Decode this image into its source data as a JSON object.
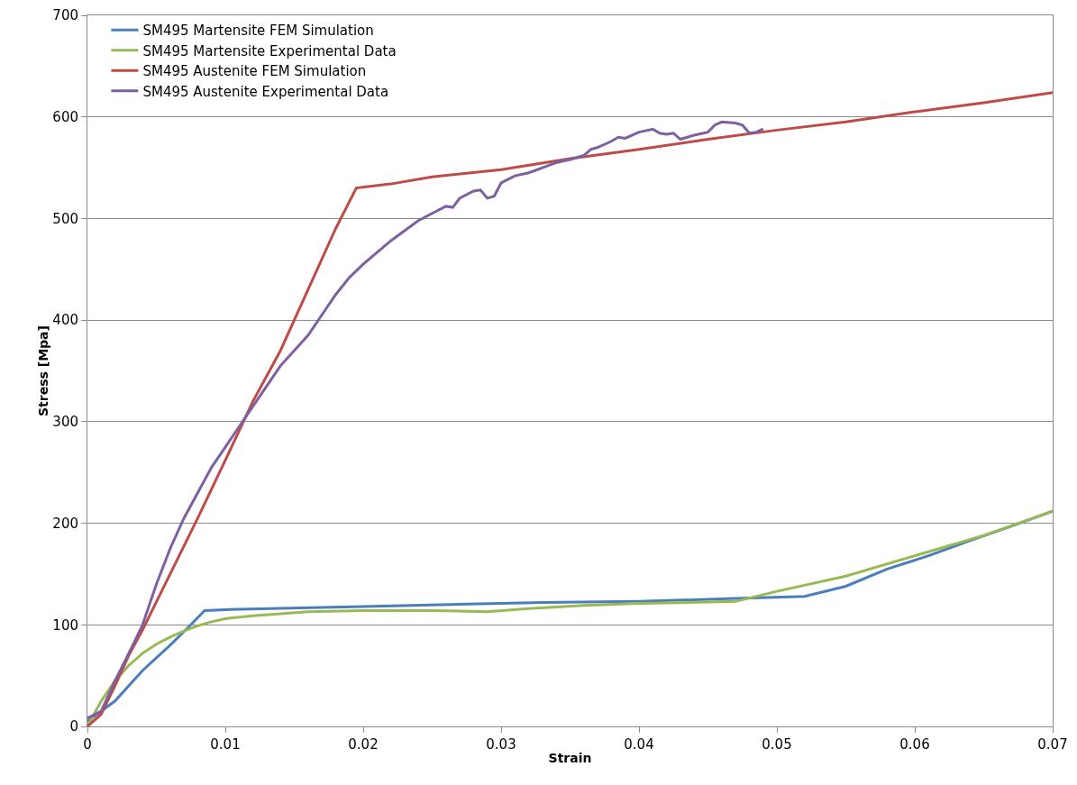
{
  "chart_data": {
    "type": "line",
    "xlabel": "Strain",
    "ylabel": "Stress [Mpa]",
    "xlim": [
      0,
      0.07
    ],
    "xticks": [
      0,
      0.01,
      0.02,
      0.03,
      0.04,
      0.05,
      0.06,
      0.07
    ],
    "ylim": [
      0,
      700
    ],
    "yticks": [
      0,
      100,
      200,
      300,
      400,
      500,
      600,
      700
    ],
    "grid": "y",
    "legend": "top left",
    "marker": "none",
    "line_style": "solid",
    "series": [
      {
        "name": "SM495 Martensite FEM Simulation",
        "color": "#4a7ebb",
        "x": [
          0,
          0.002,
          0.004,
          0.006,
          0.0075,
          0.0085,
          0.01,
          0.02,
          0.033,
          0.04,
          0.047,
          0.052,
          0.055,
          0.058,
          0.061,
          0.064,
          0.067,
          0.07
        ],
        "values": [
          5,
          25,
          55,
          80,
          100,
          114,
          115,
          118,
          122,
          123,
          126,
          128,
          138,
          155,
          168,
          183,
          197,
          212
        ]
      },
      {
        "name": "SM495 Martensite Experimental Data",
        "color": "#98b954",
        "x": [
          0,
          0.001,
          0.002,
          0.003,
          0.004,
          0.005,
          0.006,
          0.007,
          0.008,
          0.009,
          0.01,
          0.012,
          0.014,
          0.016,
          0.02,
          0.025,
          0.029,
          0.032,
          0.036,
          0.04,
          0.047,
          0.05,
          0.055,
          0.06,
          0.065,
          0.07
        ],
        "values": [
          0,
          25,
          45,
          60,
          72,
          81,
          88,
          94,
          99,
          103,
          106,
          109,
          111,
          113,
          114,
          114,
          113,
          116,
          119,
          121,
          123,
          133,
          148,
          168,
          188,
          212
        ]
      },
      {
        "name": "SM495 Austenite FEM Simulation",
        "color": "#be4b48",
        "x": [
          0,
          0.001,
          0.002,
          0.003,
          0.004,
          0.006,
          0.008,
          0.01,
          0.012,
          0.014,
          0.016,
          0.018,
          0.0195,
          0.022,
          0.025,
          0.03,
          0.035,
          0.04,
          0.045,
          0.05,
          0.055,
          0.06,
          0.065,
          0.07
        ],
        "values": [
          0,
          12,
          40,
          70,
          95,
          150,
          205,
          262,
          320,
          370,
          430,
          490,
          530,
          534,
          541,
          548,
          559,
          568,
          578,
          587,
          595,
          605,
          614,
          624
        ]
      },
      {
        "name": "SM495 Austenite Experimental Data",
        "color": "#7d60a0",
        "x": [
          0,
          0.001,
          0.002,
          0.003,
          0.004,
          0.005,
          0.006,
          0.007,
          0.008,
          0.009,
          0.01,
          0.011,
          0.012,
          0.013,
          0.014,
          0.015,
          0.016,
          0.017,
          0.018,
          0.019,
          0.02,
          0.022,
          0.024,
          0.025,
          0.026,
          0.0265,
          0.027,
          0.028,
          0.0285,
          0.029,
          0.0295,
          0.03,
          0.031,
          0.032,
          0.033,
          0.034,
          0.035,
          0.036,
          0.0365,
          0.037,
          0.038,
          0.0385,
          0.039,
          0.04,
          0.041,
          0.0415,
          0.042,
          0.0425,
          0.043,
          0.0435,
          0.044,
          0.045,
          0.0455,
          0.046,
          0.047,
          0.0475,
          0.048,
          0.0485,
          0.049
        ],
        "values": [
          8,
          15,
          45,
          72,
          100,
          140,
          175,
          205,
          230,
          255,
          275,
          295,
          315,
          335,
          355,
          370,
          385,
          405,
          425,
          442,
          455,
          478,
          498,
          505,
          512,
          511,
          520,
          527,
          528,
          520,
          522,
          535,
          542,
          545,
          550,
          555,
          558,
          562,
          568,
          570,
          576,
          580,
          579,
          585,
          588,
          584,
          583,
          584,
          578,
          580,
          582,
          585,
          592,
          595,
          594,
          592,
          584,
          585,
          588
        ]
      }
    ]
  }
}
